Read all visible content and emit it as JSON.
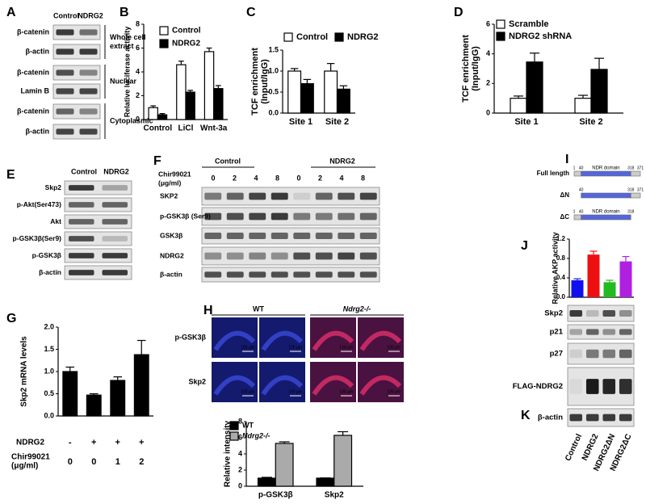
{
  "panel_labels": [
    "A",
    "B",
    "C",
    "D",
    "E",
    "F",
    "G",
    "H",
    "I",
    "J",
    "K"
  ],
  "A": {
    "columns": [
      "Control",
      "NDRG2"
    ],
    "rows": [
      "β-catenin",
      "β-actin",
      "β-catenin",
      "Lamin B",
      "β-catenin",
      "β-actin"
    ],
    "fractions": [
      [
        "Whole cell",
        "extract"
      ],
      [
        "Nuclear"
      ],
      [
        "Cytoplasmic"
      ]
    ]
  },
  "B": {
    "type": "bar",
    "y_label": [
      "Relative luciferase activity"
    ],
    "categories": [
      "Control",
      "LiCl",
      "Wnt-3a"
    ],
    "series": [
      {
        "name": "Control",
        "color": "#ffffff",
        "values": [
          1.0,
          4.6,
          5.7
        ],
        "errors": [
          0.15,
          0.3,
          0.3
        ]
      },
      {
        "name": "NDRG2",
        "color": "#000000",
        "values": [
          0.4,
          2.3,
          2.6
        ],
        "errors": [
          0.1,
          0.15,
          0.25
        ]
      }
    ],
    "ylim": [
      0,
      8
    ],
    "yticks": [
      0,
      2,
      4,
      6,
      8
    ]
  },
  "C": {
    "type": "bar",
    "y_label": [
      "TCF enrichment",
      "(Input/IgG)"
    ],
    "categories": [
      "Site 1",
      "Site 2"
    ],
    "series": [
      {
        "name": "Control",
        "color": "#ffffff",
        "values": [
          1.0,
          1.0
        ],
        "errors": [
          0.06,
          0.18
        ]
      },
      {
        "name": "NDRG2",
        "color": "#000000",
        "values": [
          0.7,
          0.57
        ],
        "errors": [
          0.1,
          0.08
        ]
      }
    ],
    "ylim": [
      0,
      1.5
    ],
    "yticks": [
      {
        "value": 0,
        "label": "0.0"
      },
      0.5,
      {
        "value": 1,
        "label": "1.0"
      },
      1.5
    ]
  },
  "D": {
    "type": "bar",
    "y_label": [
      "TCF enrichment",
      "(Input/IgG)"
    ],
    "categories": [
      "Site 1",
      "Site 2"
    ],
    "series": [
      {
        "name": "Scramble",
        "color": "#ffffff",
        "values": [
          1.0,
          1.0
        ],
        "errors": [
          0.15,
          0.2
        ]
      },
      {
        "name": "NDRG2 shRNA",
        "color": "#000000",
        "values": [
          3.45,
          2.95
        ],
        "errors": [
          0.6,
          0.75
        ]
      }
    ],
    "ylim": [
      0,
      6
    ],
    "yticks": [
      0,
      2,
      4,
      6
    ]
  },
  "E": {
    "columns": [
      "Control",
      "NDRG2"
    ],
    "rows": [
      "Skp2",
      "p-Akt(Ser473)",
      "Akt",
      "p-GSK3β(Ser9)",
      "p-GSK3β",
      "β-actin"
    ]
  },
  "F": {
    "groups": [
      "Control",
      "NDRG2"
    ],
    "dose_label": [
      "Chir99021",
      "(μg/ml)"
    ],
    "doses": [
      0,
      2,
      4,
      8,
      0,
      2,
      4,
      8
    ],
    "rows": [
      "SKP2",
      "p-GSK3β (Ser9)",
      "GSK3β",
      "NDRG2",
      "β-actin"
    ]
  },
  "G": {
    "type": "bar",
    "y_label": [
      "Skp2 mRNA levels"
    ],
    "color": "#000000",
    "values": [
      1.0,
      0.47,
      0.8,
      1.38
    ],
    "errors": [
      0.1,
      0.03,
      0.08,
      0.32
    ],
    "ylim": [
      0,
      2
    ],
    "yticks": [
      {
        "value": 0,
        "label": "0.0"
      },
      0.5,
      {
        "value": 1,
        "label": "1.0"
      },
      1.5,
      {
        "value": 2,
        "label": "2.0"
      }
    ],
    "conditions": [
      {
        "label": [
          "NDRG2"
        ],
        "levels": [
          "-",
          "+",
          "+",
          "+"
        ]
      },
      {
        "label": [
          "Chir99021",
          "(μg/ml)"
        ],
        "levels": [
          0,
          0,
          1,
          2
        ]
      }
    ]
  },
  "H": {
    "columns": [
      "WT",
      "Ndrg2-/-"
    ],
    "rows": [
      "p-GSK3β",
      "Skp2"
    ],
    "scale_bar": "100 μm",
    "chart": {
      "type": "bar",
      "y_label": [
        "Relative intensity"
      ],
      "categories": [
        "p-GSK3β",
        "Skp2"
      ],
      "series": [
        {
          "name": "WT",
          "color": "#000000",
          "values": [
            1.0,
            1.0
          ],
          "errors": [
            0.1,
            0.03
          ]
        },
        {
          "name": "Ndrg2-/-",
          "color": "#aaaaaa",
          "values": [
            5.3,
            6.3
          ],
          "errors": [
            0.2,
            0.45
          ]
        }
      ],
      "ylim": [
        0,
        8
      ],
      "yticks": [
        0,
        2,
        4,
        6,
        8
      ]
    }
  },
  "I": {
    "domain": "NDR domain",
    "constructs": [
      {
        "name": "Full length",
        "residues": [
          1,
          40,
          318,
          371
        ]
      },
      {
        "name": "ΔN",
        "residues": [
          40,
          318,
          371
        ]
      },
      {
        "name": "ΔC",
        "residues": [
          1,
          40,
          318
        ]
      }
    ]
  },
  "J": {
    "type": "bar",
    "y_label": [
      "Relative AKP activity"
    ],
    "colors": [
      "#1010ee",
      "#ee1010",
      "#22bb22",
      "#b020e0"
    ],
    "values": [
      0.35,
      0.88,
      0.31,
      0.74
    ],
    "errors": [
      0.03,
      0.07,
      0.04,
      0.1
    ],
    "ylim": [
      0,
      1.2
    ],
    "yticks": [
      {
        "value": 0,
        "label": "0.0"
      },
      0.4,
      0.8,
      1.2
    ]
  },
  "K": {
    "rows": [
      "Skp2",
      "p21",
      "p27",
      "FLAG-NDRG2",
      "β-actin"
    ],
    "columns": [
      "Control",
      "NDRG2",
      "NDRG2ΔN",
      "NDRG2ΔC"
    ]
  }
}
